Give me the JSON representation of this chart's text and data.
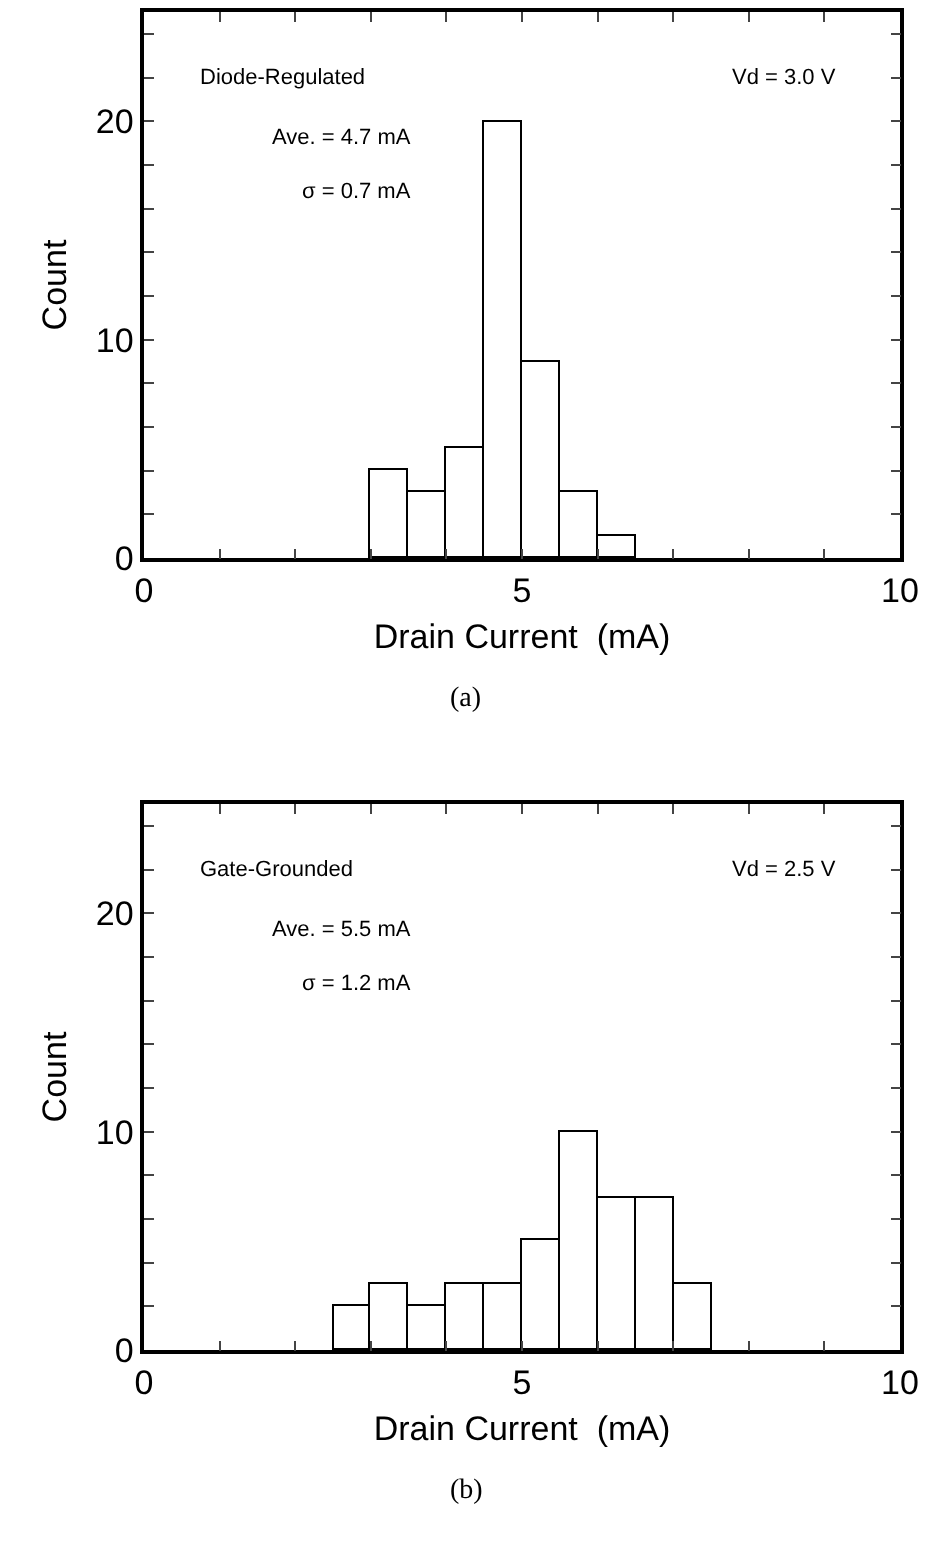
{
  "chart_data": [
    {
      "type": "histogram",
      "xlabel": "Drain Current  (mA)",
      "ylabel": "Count",
      "annotations": [
        "Diode-Regulated",
        "Vd = 3.0 V",
        "Ave. = 4.7 mA",
        "σ = 0.7 mA",
        "(a)"
      ],
      "bins": [
        3.0,
        3.5,
        4.0,
        4.5,
        5.0,
        5.5,
        6.0,
        6.5
      ],
      "values": [
        4,
        3,
        5,
        20,
        9,
        3,
        1
      ],
      "color": "#ffffff",
      "xlim": [
        0,
        10
      ],
      "xticks": [
        0,
        {
          "value": 1,
          "label": null
        },
        {
          "value": 2,
          "label": null
        },
        {
          "value": 3,
          "label": null
        },
        {
          "value": 4,
          "label": null
        },
        5,
        {
          "value": 6,
          "label": null
        },
        {
          "value": 7,
          "label": null
        },
        {
          "value": 8,
          "label": null
        },
        {
          "value": 9,
          "label": null
        },
        10
      ],
      "ylim": [
        0,
        25
      ],
      "yticks": [
        0,
        {
          "value": 2,
          "label": null
        },
        {
          "value": 4,
          "label": null
        },
        {
          "value": 6,
          "label": null
        },
        {
          "value": 8,
          "label": null
        },
        10,
        {
          "value": 12,
          "label": null
        },
        {
          "value": 14,
          "label": null
        },
        {
          "value": 16,
          "label": null
        },
        {
          "value": 18,
          "label": null
        },
        20,
        {
          "value": 22,
          "label": null
        },
        {
          "value": 24,
          "label": null
        }
      ]
    },
    {
      "type": "histogram",
      "xlabel": "Drain Current  (mA)",
      "ylabel": "Count",
      "annotations": [
        "Gate-Grounded",
        "Vd = 2.5 V",
        "Ave. = 5.5 mA",
        "σ = 1.2 mA",
        "(b)"
      ],
      "bins": [
        2.5,
        3.0,
        3.5,
        4.0,
        4.5,
        5.0,
        5.5,
        6.0,
        6.5,
        7.0,
        7.5
      ],
      "values": [
        2,
        3,
        2,
        3,
        3,
        5,
        10,
        7,
        7,
        3
      ],
      "color": "#ffffff",
      "xlim": [
        0,
        10
      ],
      "xticks": [
        0,
        {
          "value": 1,
          "label": null
        },
        {
          "value": 2,
          "label": null
        },
        {
          "value": 3,
          "label": null
        },
        {
          "value": 4,
          "label": null
        },
        5,
        {
          "value": 6,
          "label": null
        },
        {
          "value": 7,
          "label": null
        },
        {
          "value": 8,
          "label": null
        },
        {
          "value": 9,
          "label": null
        },
        10
      ],
      "ylim": [
        0,
        25
      ],
      "yticks": [
        0,
        {
          "value": 2,
          "label": null
        },
        {
          "value": 4,
          "label": null
        },
        {
          "value": 6,
          "label": null
        },
        {
          "value": 8,
          "label": null
        },
        10,
        {
          "value": 12,
          "label": null
        },
        {
          "value": 14,
          "label": null
        },
        {
          "value": 16,
          "label": null
        },
        {
          "value": 18,
          "label": null
        },
        20,
        {
          "value": 22,
          "label": null
        },
        {
          "value": 24,
          "label": null
        }
      ]
    }
  ]
}
